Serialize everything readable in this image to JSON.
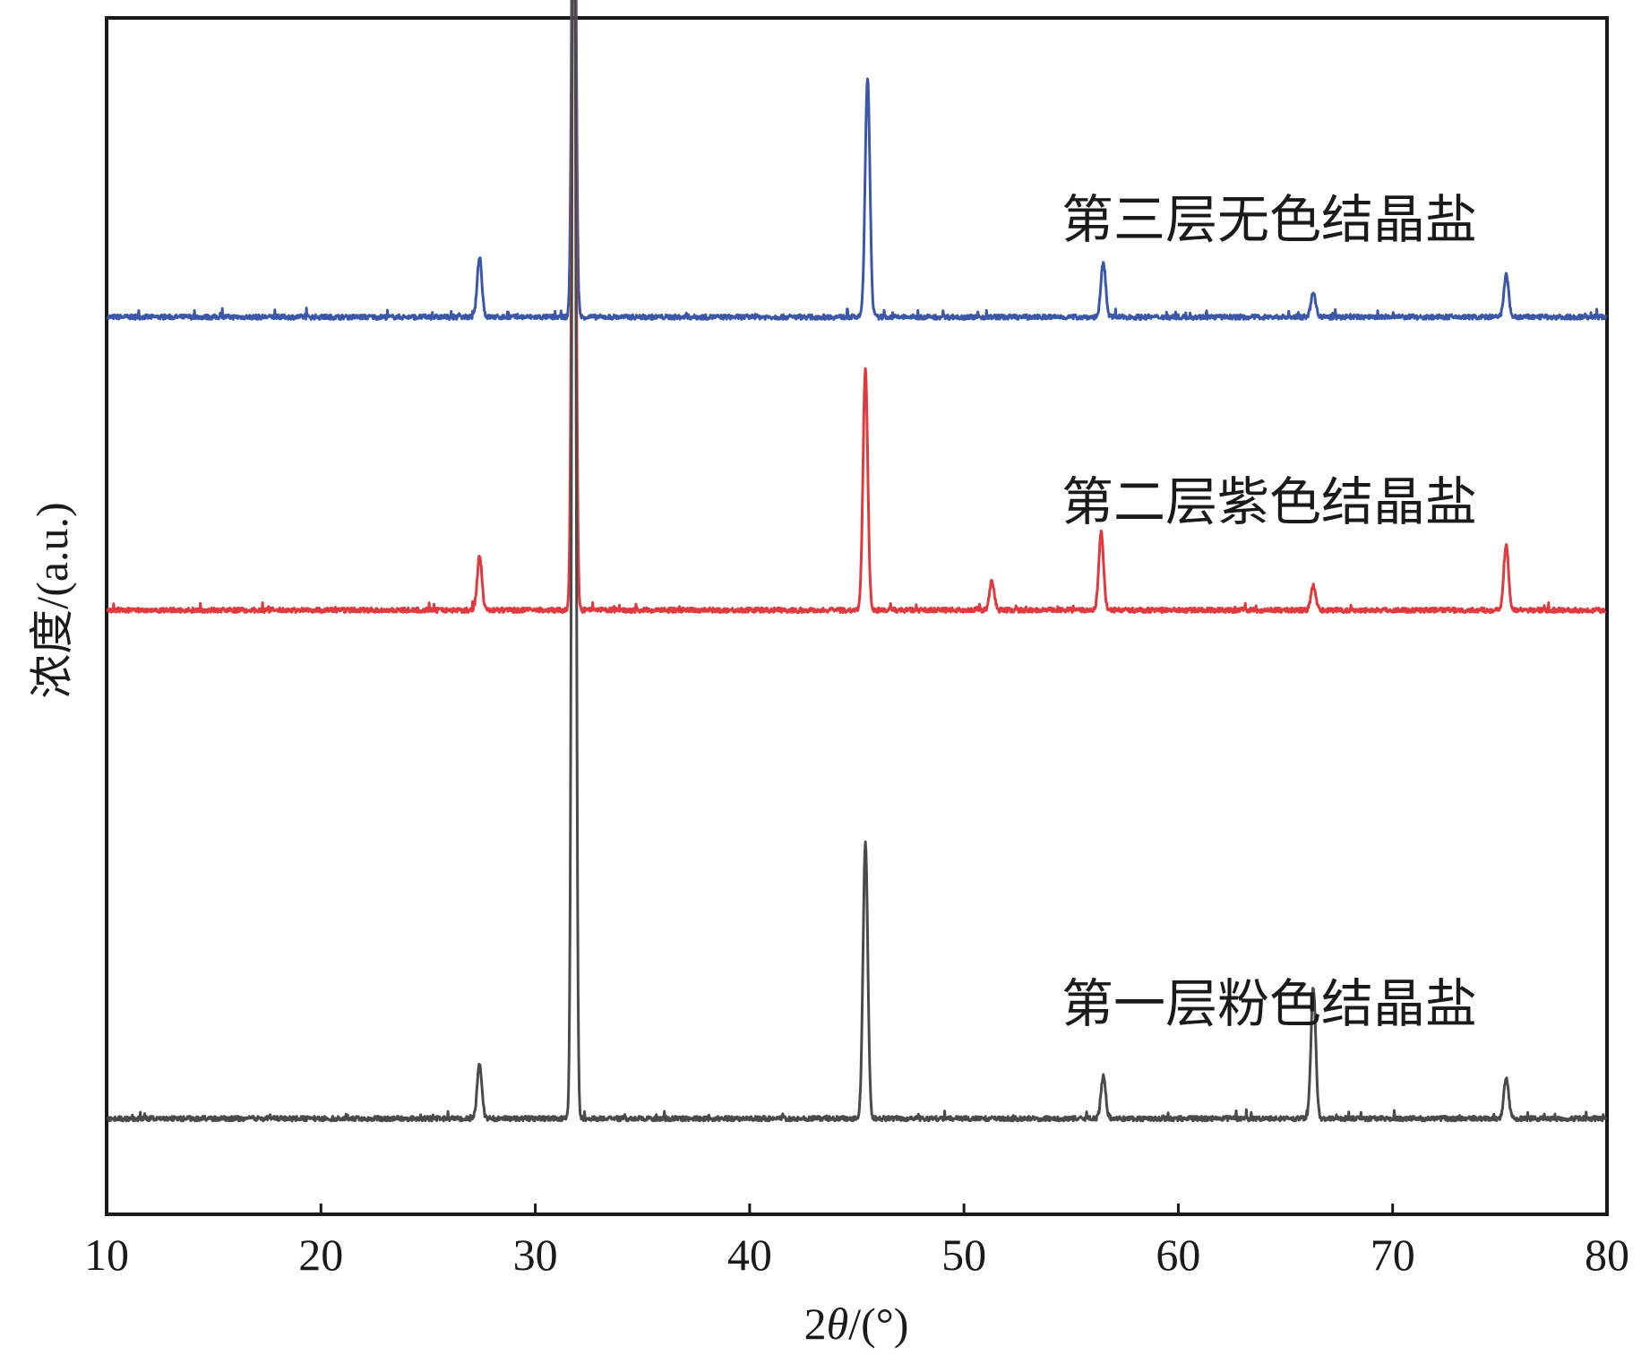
{
  "chart_data": {
    "type": "line",
    "xlabel_prefix": "2",
    "xlabel_var": "θ",
    "xlabel_suffix": "/(°)",
    "ylabel": "浓度/(a.u.)",
    "xlim": [
      10,
      80
    ],
    "xticks": [
      10,
      20,
      30,
      40,
      50,
      60,
      70,
      80
    ],
    "yticks_shown": false,
    "grid": false,
    "series": [
      {
        "name": "第三层无色结晶盐",
        "color": "#3b57a8",
        "baseline": 0.75,
        "peaks": [
          {
            "x": 27.4,
            "h": 0.05
          },
          {
            "x": 31.8,
            "h": 0.54
          },
          {
            "x": 45.5,
            "h": 0.2
          },
          {
            "x": 56.5,
            "h": 0.045
          },
          {
            "x": 66.3,
            "h": 0.02
          },
          {
            "x": 75.3,
            "h": 0.035
          }
        ]
      },
      {
        "name": "第二层紫色结晶盐",
        "color": "#e03a3e",
        "baseline": 0.505,
        "peaks": [
          {
            "x": 27.4,
            "h": 0.045
          },
          {
            "x": 31.8,
            "h": 0.73
          },
          {
            "x": 45.4,
            "h": 0.2
          },
          {
            "x": 51.3,
            "h": 0.025
          },
          {
            "x": 56.4,
            "h": 0.065
          },
          {
            "x": 66.3,
            "h": 0.02
          },
          {
            "x": 75.3,
            "h": 0.055
          }
        ]
      },
      {
        "name": "第一层粉色结晶盐",
        "color": "#4a4a4a",
        "baseline": 0.08,
        "peaks": [
          {
            "x": 27.4,
            "h": 0.045
          },
          {
            "x": 31.8,
            "h": 1.24
          },
          {
            "x": 45.4,
            "h": 0.23
          },
          {
            "x": 56.5,
            "h": 0.035
          },
          {
            "x": 66.3,
            "h": 0.11
          },
          {
            "x": 75.3,
            "h": 0.035
          }
        ]
      }
    ]
  }
}
